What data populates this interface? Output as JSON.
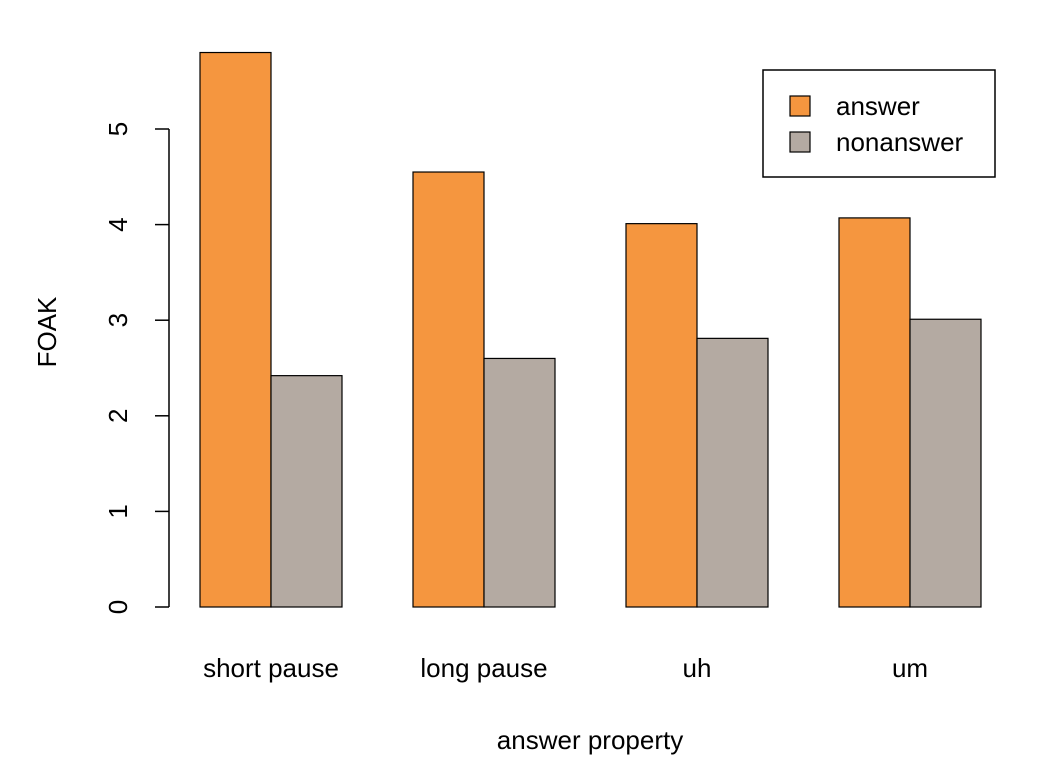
{
  "chart_data": {
    "type": "bar",
    "title": "",
    "xlabel": "answer property",
    "ylabel": "FOAK",
    "categories": [
      "short pause",
      "long pause",
      "uh",
      "um"
    ],
    "series": [
      {
        "name": "answer",
        "color": "#F5963F",
        "values": [
          5.8,
          4.55,
          4.01,
          4.07
        ]
      },
      {
        "name": "nonanswer",
        "color": "#B4AAA2",
        "values": [
          2.42,
          2.6,
          2.81,
          3.01
        ]
      }
    ],
    "yticks": [
      0,
      1,
      2,
      3,
      4,
      5
    ],
    "ylim": [
      0,
      5.8
    ],
    "grid": false,
    "legend_position": "top-right"
  }
}
